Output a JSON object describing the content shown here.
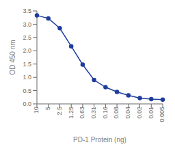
{
  "chart_data": {
    "type": "line",
    "categories": [
      "10",
      "5",
      "2.5",
      "1.25",
      "0.63",
      "0.31",
      "0.16",
      "0.08",
      "0.04",
      "0.02",
      "0.01",
      "0.005"
    ],
    "values": [
      3.33,
      3.22,
      2.85,
      2.17,
      1.48,
      0.9,
      0.63,
      0.45,
      0.32,
      0.22,
      0.18,
      0.16
    ],
    "x_label": "PD-1 Protein (ng)",
    "y_label": "OD 450 nm",
    "ylim": [
      0,
      3.5
    ],
    "yticks": [
      {
        "value": 0,
        "label": "0.0"
      },
      0.5,
      {
        "value": 1,
        "label": "1.0"
      },
      1.5,
      {
        "value": 2,
        "label": "2.0"
      },
      2.5,
      {
        "value": 3,
        "label": "3.0"
      },
      3.5
    ],
    "color": "#1f3d9c",
    "marker": "circle",
    "grid": false
  }
}
